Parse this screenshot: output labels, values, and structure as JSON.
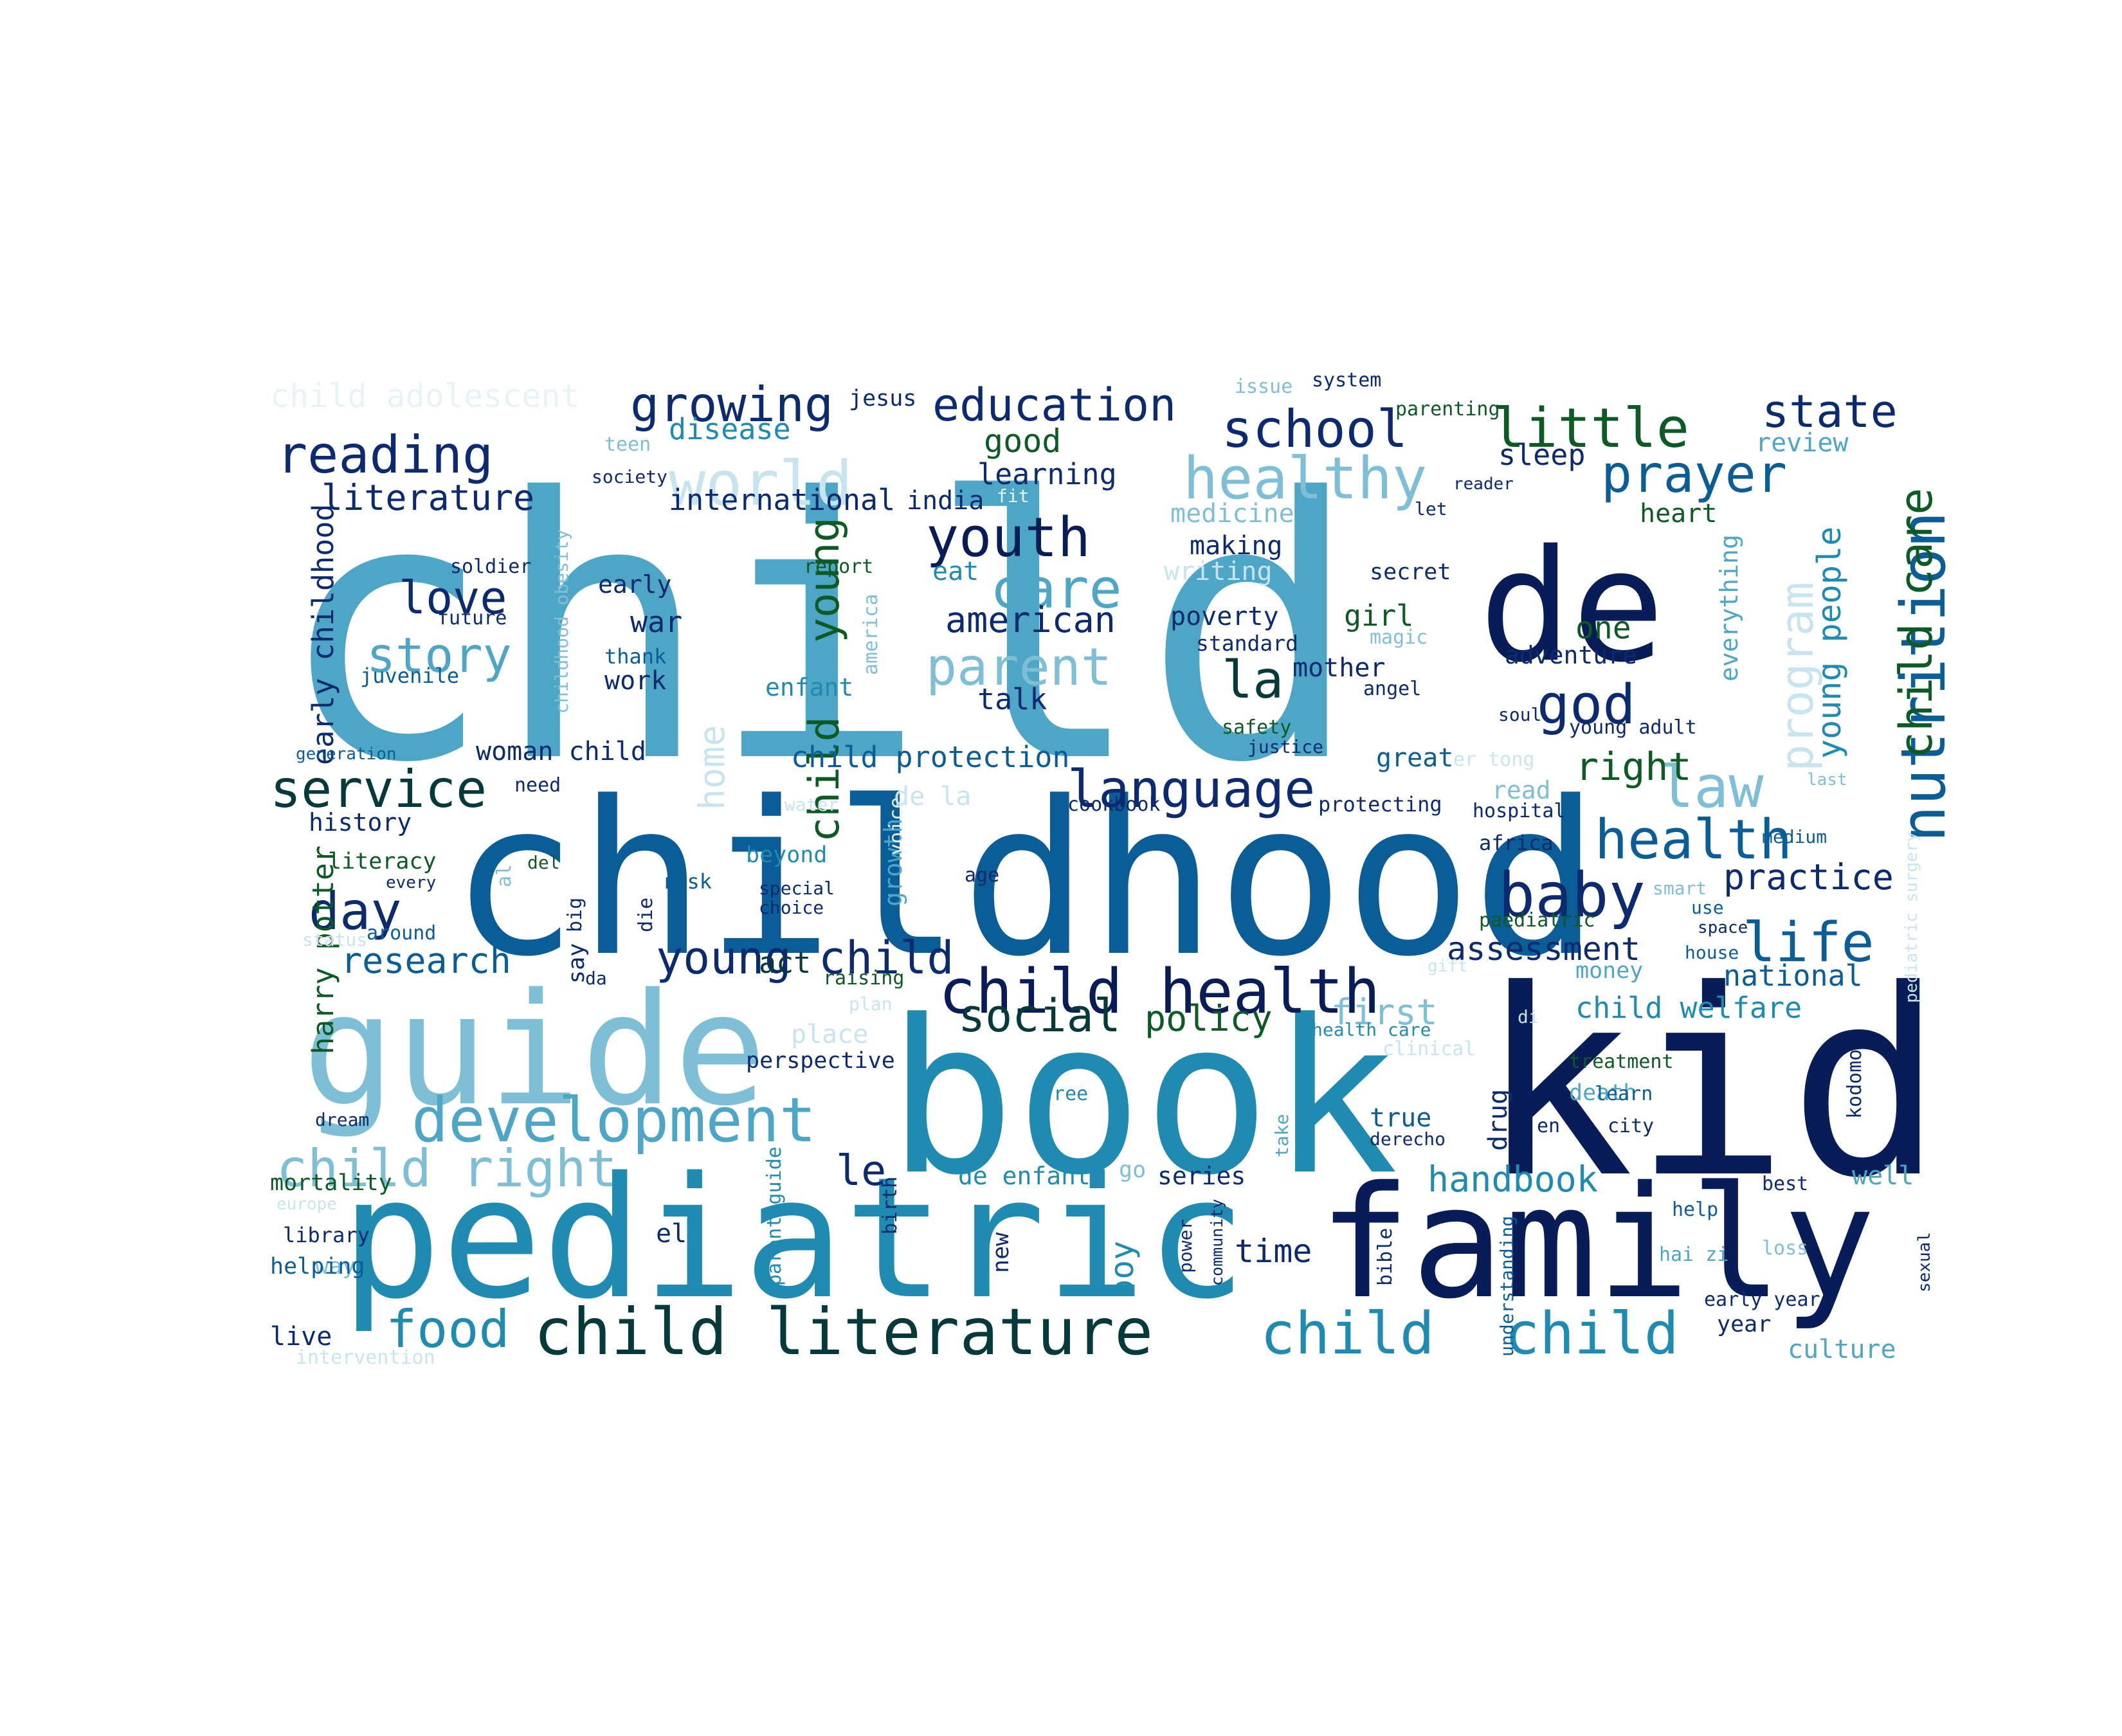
{
  "colors": {
    "background": "#ffffff",
    "steel": "#4ea6c6",
    "deep_navy": "#081d58",
    "navy": "#0b2a6f",
    "ocean": "#0a5d96",
    "teal": "#1f8bb0",
    "sky": "#7fbfd6",
    "pale": "#c8e4ee",
    "faint": "#e8f3f7",
    "dark_teal": "#063a3a",
    "green": "#1a7a1a",
    "dark_green": "#0d5a24"
  },
  "words": [
    {
      "text": "child",
      "color": "steel"
    },
    {
      "text": "childhood",
      "color": "ocean"
    },
    {
      "text": "book",
      "color": "teal"
    },
    {
      "text": "kid",
      "color": "deep_navy"
    },
    {
      "text": "pediatric",
      "color": "teal"
    },
    {
      "text": "family",
      "color": "deep_navy"
    },
    {
      "text": "guide",
      "color": "sky"
    },
    {
      "text": "de",
      "color": "deep_navy"
    },
    {
      "text": "child literature",
      "color": "dark_teal"
    },
    {
      "text": "child health",
      "color": "deep_navy"
    },
    {
      "text": "development",
      "color": "steel"
    },
    {
      "text": "child right",
      "color": "sky"
    },
    {
      "text": "child",
      "color": "teal"
    },
    {
      "text": "child",
      "color": "teal"
    },
    {
      "text": "language",
      "color": "navy"
    },
    {
      "text": "healthy",
      "color": "sky"
    },
    {
      "text": "world",
      "color": "pale"
    },
    {
      "text": "school",
      "color": "navy"
    },
    {
      "text": "little",
      "color": "dark_green"
    },
    {
      "text": "state",
      "color": "navy"
    },
    {
      "text": "reading",
      "color": "navy"
    },
    {
      "text": "growing",
      "color": "navy"
    },
    {
      "text": "education",
      "color": "navy"
    },
    {
      "text": "service",
      "color": "dark_teal"
    },
    {
      "text": "story",
      "color": "steel"
    },
    {
      "text": "youth",
      "color": "deep_navy"
    },
    {
      "text": "care",
      "color": "steel"
    },
    {
      "text": "parent",
      "color": "sky"
    },
    {
      "text": "prayer",
      "color": "ocean"
    },
    {
      "text": "nutrition",
      "color": "ocean"
    },
    {
      "text": "child care",
      "color": "dark_green"
    },
    {
      "text": "health",
      "color": "ocean"
    },
    {
      "text": "baby",
      "color": "navy"
    },
    {
      "text": "life",
      "color": "ocean"
    },
    {
      "text": "law",
      "color": "sky"
    },
    {
      "text": "god",
      "color": "navy"
    },
    {
      "text": "la",
      "color": "dark_teal"
    },
    {
      "text": "young child",
      "color": "navy"
    },
    {
      "text": "social",
      "color": "dark_teal"
    },
    {
      "text": "food",
      "color": "teal"
    },
    {
      "text": "day",
      "color": "navy"
    },
    {
      "text": "love",
      "color": "navy"
    },
    {
      "text": "le",
      "color": "navy"
    },
    {
      "text": "literature",
      "color": "navy"
    },
    {
      "text": "american",
      "color": "navy"
    },
    {
      "text": "handbook",
      "color": "teal"
    },
    {
      "text": "practice",
      "color": "navy"
    },
    {
      "text": "assessment",
      "color": "navy"
    },
    {
      "text": "research",
      "color": "ocean"
    },
    {
      "text": "policy",
      "color": "dark_green"
    },
    {
      "text": "first",
      "color": "sky"
    },
    {
      "text": "child welfare",
      "color": "teal"
    },
    {
      "text": "national",
      "color": "ocean"
    },
    {
      "text": "right",
      "color": "dark_green"
    },
    {
      "text": "young",
      "color": "dark_green"
    },
    {
      "text": "child",
      "color": "dark_green"
    },
    {
      "text": "program",
      "color": "pale"
    },
    {
      "text": "young people",
      "color": "teal"
    },
    {
      "text": "early childhood",
      "color": "navy"
    },
    {
      "text": "harry potter",
      "color": "dark_green"
    },
    {
      "text": "international",
      "color": "navy"
    },
    {
      "text": "child protection",
      "color": "ocean"
    },
    {
      "text": "time",
      "color": "navy"
    },
    {
      "text": "boy",
      "color": "teal"
    },
    {
      "text": "good",
      "color": "dark_green"
    },
    {
      "text": "learning",
      "color": "navy"
    },
    {
      "text": "disease",
      "color": "teal"
    },
    {
      "text": "medicine",
      "color": "sky"
    },
    {
      "text": "child adolescent",
      "color": "faint"
    },
    {
      "text": "home",
      "color": "pale"
    },
    {
      "text": "sleep",
      "color": "navy"
    },
    {
      "text": "review",
      "color": "steel"
    },
    {
      "text": "heart",
      "color": "dark_green"
    },
    {
      "text": "india",
      "color": "navy"
    },
    {
      "text": "making",
      "color": "navy"
    },
    {
      "text": "writing",
      "color": "pale"
    },
    {
      "text": "poverty",
      "color": "navy"
    },
    {
      "text": "standard",
      "color": "navy"
    },
    {
      "text": "girl",
      "color": "dark_green"
    },
    {
      "text": "magic",
      "color": "sky"
    },
    {
      "text": "mother",
      "color": "navy"
    },
    {
      "text": "angel",
      "color": "navy"
    },
    {
      "text": "one",
      "color": "dark_green"
    },
    {
      "text": "adventure",
      "color": "navy"
    },
    {
      "text": "secret",
      "color": "navy"
    },
    {
      "text": "everything",
      "color": "steel"
    },
    {
      "text": "talk",
      "color": "navy"
    },
    {
      "text": "enfant",
      "color": "teal"
    },
    {
      "text": "work",
      "color": "navy"
    },
    {
      "text": "war",
      "color": "navy"
    },
    {
      "text": "early",
      "color": "navy"
    },
    {
      "text": "thank",
      "color": "ocean"
    },
    {
      "text": "eat",
      "color": "teal"
    },
    {
      "text": "report",
      "color": "dark_green"
    },
    {
      "text": "america",
      "color": "sky"
    },
    {
      "text": "soldier",
      "color": "navy"
    },
    {
      "text": "future",
      "color": "navy"
    },
    {
      "text": "juvenile",
      "color": "ocean"
    },
    {
      "text": "childhood obesity",
      "color": "sky"
    },
    {
      "text": "woman child",
      "color": "navy"
    },
    {
      "text": "generation",
      "color": "ocean"
    },
    {
      "text": "need",
      "color": "navy"
    },
    {
      "text": "history",
      "color": "navy"
    },
    {
      "text": "literacy",
      "color": "dark_green"
    },
    {
      "text": "del",
      "color": "dark_green"
    },
    {
      "text": "al",
      "color": "sky"
    },
    {
      "text": "every",
      "color": "navy"
    },
    {
      "text": "status",
      "color": "pale"
    },
    {
      "text": "around",
      "color": "ocean"
    },
    {
      "text": "say",
      "color": "navy"
    },
    {
      "text": "da",
      "color": "navy"
    },
    {
      "text": "big",
      "color": "navy"
    },
    {
      "text": "die",
      "color": "navy"
    },
    {
      "text": "risk",
      "color": "ocean"
    },
    {
      "text": "beyond",
      "color": "teal"
    },
    {
      "text": "special",
      "color": "navy"
    },
    {
      "text": "choice",
      "color": "navy"
    },
    {
      "text": "growth",
      "color": "steel"
    },
    {
      "text": "voice",
      "color": "faint"
    },
    {
      "text": "age",
      "color": "navy"
    },
    {
      "text": "de la",
      "color": "pale"
    },
    {
      "text": "water",
      "color": "pale"
    },
    {
      "text": "cookbook",
      "color": "navy"
    },
    {
      "text": "protecting",
      "color": "navy"
    },
    {
      "text": "great",
      "color": "ocean"
    },
    {
      "text": "er tong",
      "color": "pale"
    },
    {
      "text": "read",
      "color": "sky"
    },
    {
      "text": "last",
      "color": "sky"
    },
    {
      "text": "hospital",
      "color": "navy"
    },
    {
      "text": "africa",
      "color": "navy"
    },
    {
      "text": "medium",
      "color": "ocean"
    },
    {
      "text": "pediatric surgery",
      "color": "pale"
    },
    {
      "text": "smart",
      "color": "sky"
    },
    {
      "text": "use",
      "color": "ocean"
    },
    {
      "text": "space",
      "color": "navy"
    },
    {
      "text": "house",
      "color": "ocean"
    },
    {
      "text": "paediatric",
      "color": "dark_green"
    },
    {
      "text": "money",
      "color": "steel"
    },
    {
      "text": "gift",
      "color": "pale"
    },
    {
      "text": "di",
      "color": "pale"
    },
    {
      "text": "health care",
      "color": "teal"
    },
    {
      "text": "clinical",
      "color": "pale"
    },
    {
      "text": "treatment",
      "color": "dark_green"
    },
    {
      "text": "death",
      "color": "steel"
    },
    {
      "text": "learn",
      "color": "ocean"
    },
    {
      "text": "kodomo",
      "color": "navy"
    },
    {
      "text": "city",
      "color": "navy"
    },
    {
      "text": "en",
      "color": "navy"
    },
    {
      "text": "true",
      "color": "ocean"
    },
    {
      "text": "drug",
      "color": "navy"
    },
    {
      "text": "derecho",
      "color": "navy"
    },
    {
      "text": "take",
      "color": "steel"
    },
    {
      "text": "series",
      "color": "navy"
    },
    {
      "text": "go",
      "color": "sky"
    },
    {
      "text": "well",
      "color": "steel"
    },
    {
      "text": "best",
      "color": "navy"
    },
    {
      "text": "help",
      "color": "ocean"
    },
    {
      "text": "hai zi",
      "color": "steel"
    },
    {
      "text": "loss",
      "color": "sky"
    },
    {
      "text": "sexual",
      "color": "navy"
    },
    {
      "text": "early year",
      "color": "navy"
    },
    {
      "text": "year",
      "color": "navy"
    },
    {
      "text": "culture",
      "color": "steel"
    },
    {
      "text": "understanding",
      "color": "ocean"
    },
    {
      "text": "bible",
      "color": "navy"
    },
    {
      "text": "power",
      "color": "navy"
    },
    {
      "text": "community",
      "color": "navy"
    },
    {
      "text": "new",
      "color": "navy"
    },
    {
      "text": "birth",
      "color": "navy"
    },
    {
      "text": "parent guide",
      "color": "teal"
    },
    {
      "text": "el",
      "color": "navy"
    },
    {
      "text": "de enfant",
      "color": "teal"
    },
    {
      "text": "free",
      "color": "teal"
    },
    {
      "text": "perspective",
      "color": "navy"
    },
    {
      "text": "place",
      "color": "pale"
    },
    {
      "text": "act",
      "color": "dark_teal"
    },
    {
      "text": "raising",
      "color": "dark_green"
    },
    {
      "text": "plan",
      "color": "pale"
    },
    {
      "text": "dream",
      "color": "navy"
    },
    {
      "text": "mortality",
      "color": "dark_green"
    },
    {
      "text": "europe",
      "color": "pale"
    },
    {
      "text": "library",
      "color": "navy"
    },
    {
      "text": "way",
      "color": "sky"
    },
    {
      "text": "helping",
      "color": "ocean"
    },
    {
      "text": "live",
      "color": "navy"
    },
    {
      "text": "intervention",
      "color": "pale"
    },
    {
      "text": "jesus",
      "color": "navy"
    },
    {
      "text": "issue",
      "color": "sky"
    },
    {
      "text": "system",
      "color": "navy"
    },
    {
      "text": "parenting",
      "color": "dark_green"
    },
    {
      "text": "teen",
      "color": "sky"
    },
    {
      "text": "society",
      "color": "navy"
    },
    {
      "text": "fit",
      "color": "faint"
    },
    {
      "text": "reader",
      "color": "navy"
    },
    {
      "text": "let",
      "color": "navy"
    },
    {
      "text": "safety",
      "color": "dark_green"
    },
    {
      "text": "justice",
      "color": "navy"
    },
    {
      "text": "soul",
      "color": "navy"
    },
    {
      "text": "young adult",
      "color": "navy"
    }
  ]
}
